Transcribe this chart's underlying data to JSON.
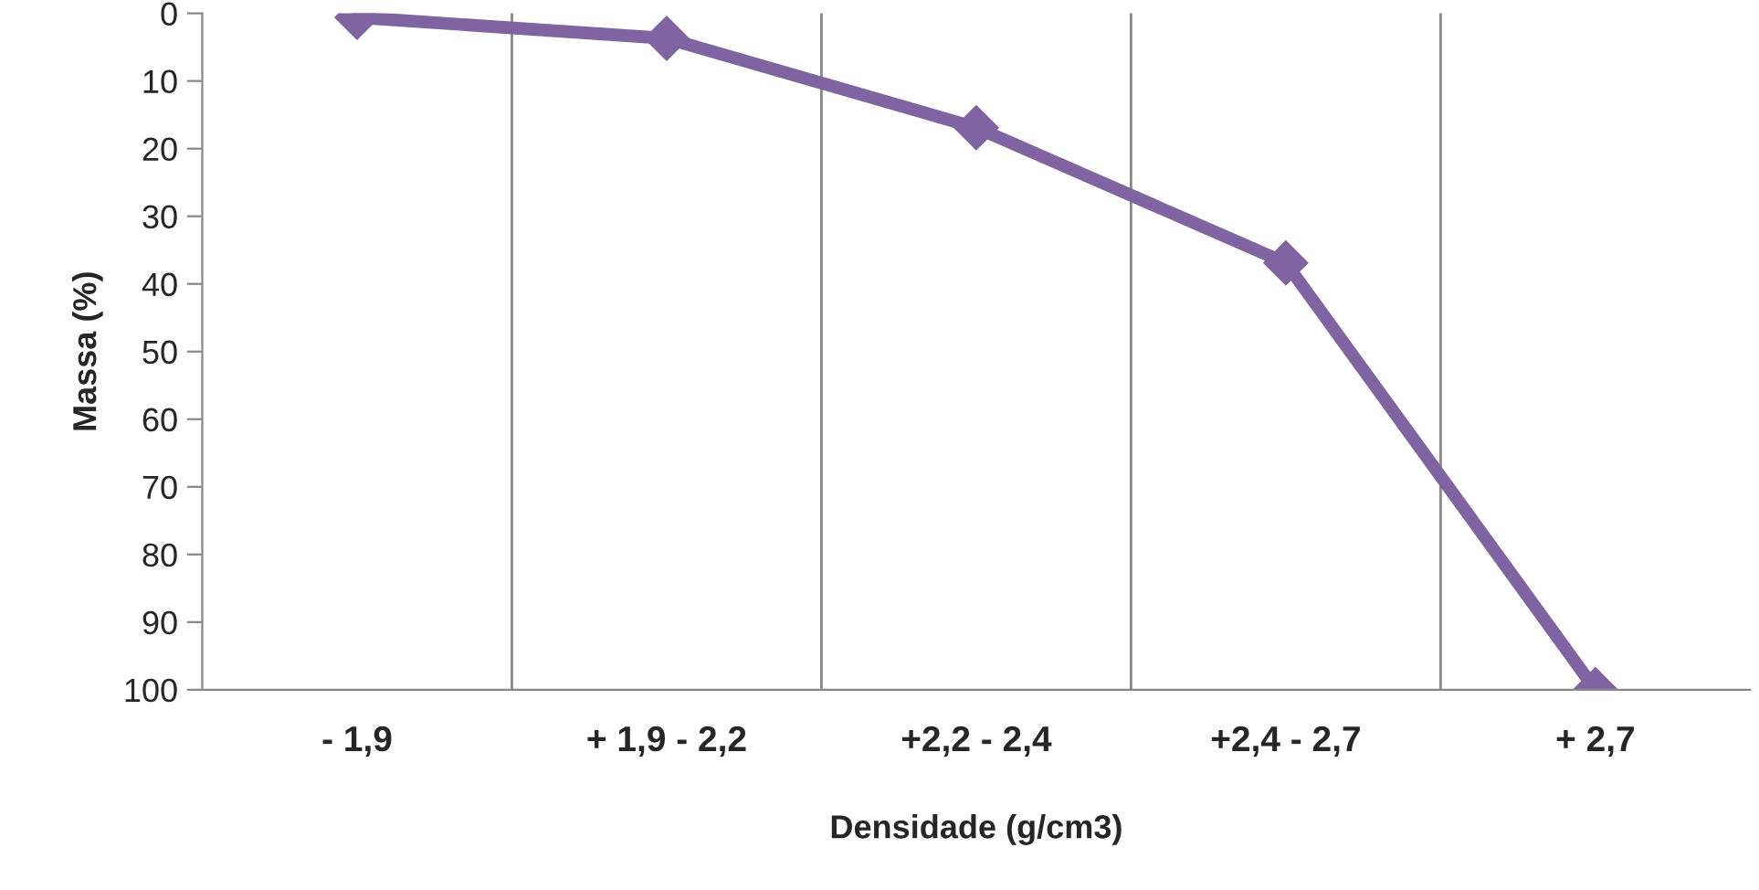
{
  "chart_data": {
    "type": "line",
    "xlabel": "Densidade (g/cm3)",
    "ylabel": "Massa (%)",
    "categories": [
      "- 1,9",
      "+ 1,9 - 2,2",
      "+2,2 - 2,4",
      "+2,4 - 2,7",
      "+ 2,7"
    ],
    "series": [
      {
        "color": "#8064a2",
        "values": [
          0.6,
          3.7,
          16.9,
          36.9,
          100
        ]
      }
    ],
    "ylim": [
      100,
      0
    ],
    "yticks": [
      0,
      10,
      20,
      30,
      40,
      50,
      60,
      70,
      80,
      90,
      100
    ],
    "grid": "x",
    "legend": false,
    "marker": "diamond",
    "line_style": "solid"
  }
}
